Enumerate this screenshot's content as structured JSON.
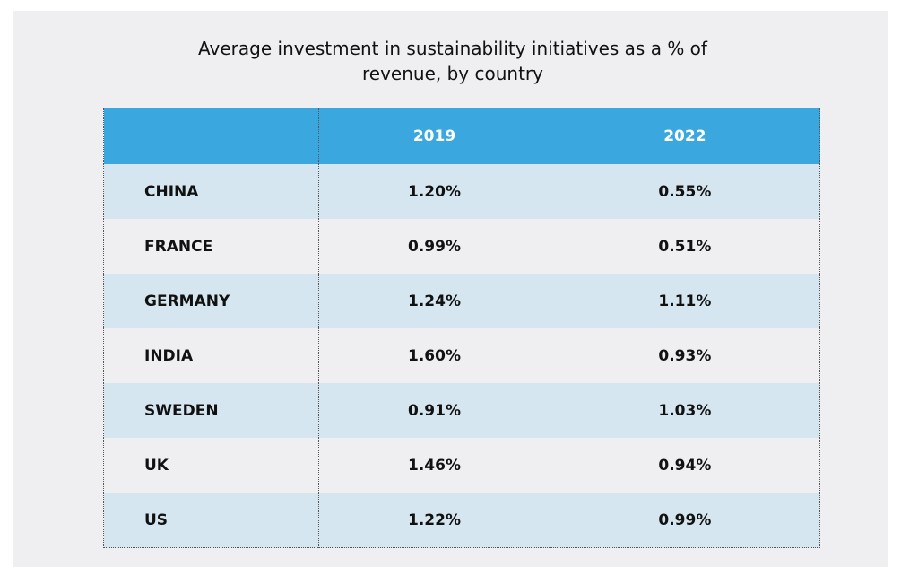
{
  "title": "Average investment in sustainability initiatives as a % of revenue, by country",
  "table": {
    "header": [
      "2019",
      "2022"
    ],
    "rows": [
      [
        "CHINA",
        "1.20%",
        "0.55%"
      ],
      [
        "FRANCE",
        "0.99%",
        "0.51%"
      ],
      [
        "GERMANY",
        "1.24%",
        "1.11%"
      ],
      [
        "INDIA",
        "1.60%",
        "0.93%"
      ],
      [
        "SWEDEN",
        "0.91%",
        "1.03%"
      ],
      [
        "UK",
        "1.46%",
        "0.94%"
      ],
      [
        "US",
        "1.22%",
        "0.99%"
      ]
    ]
  }
}
